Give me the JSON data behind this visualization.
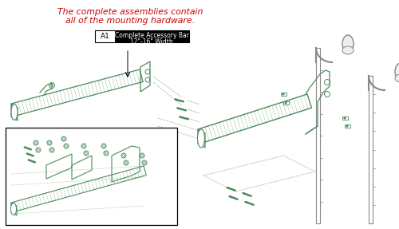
{
  "bg_color": "#ffffff",
  "green": "#4d8b5e",
  "red_text": "#cc0000",
  "gray": "#b0b0b0",
  "gray_dark": "#888888",
  "title_line1": "The complete assemblies contain",
  "title_line2": "all of the mounting hardware.",
  "label_a1": "A1",
  "label_desc_line1": "Complete Accessory Bar",
  "label_desc_line2": "12\"-16\" Width",
  "figsize": [
    5.0,
    2.87
  ],
  "dpi": 100
}
